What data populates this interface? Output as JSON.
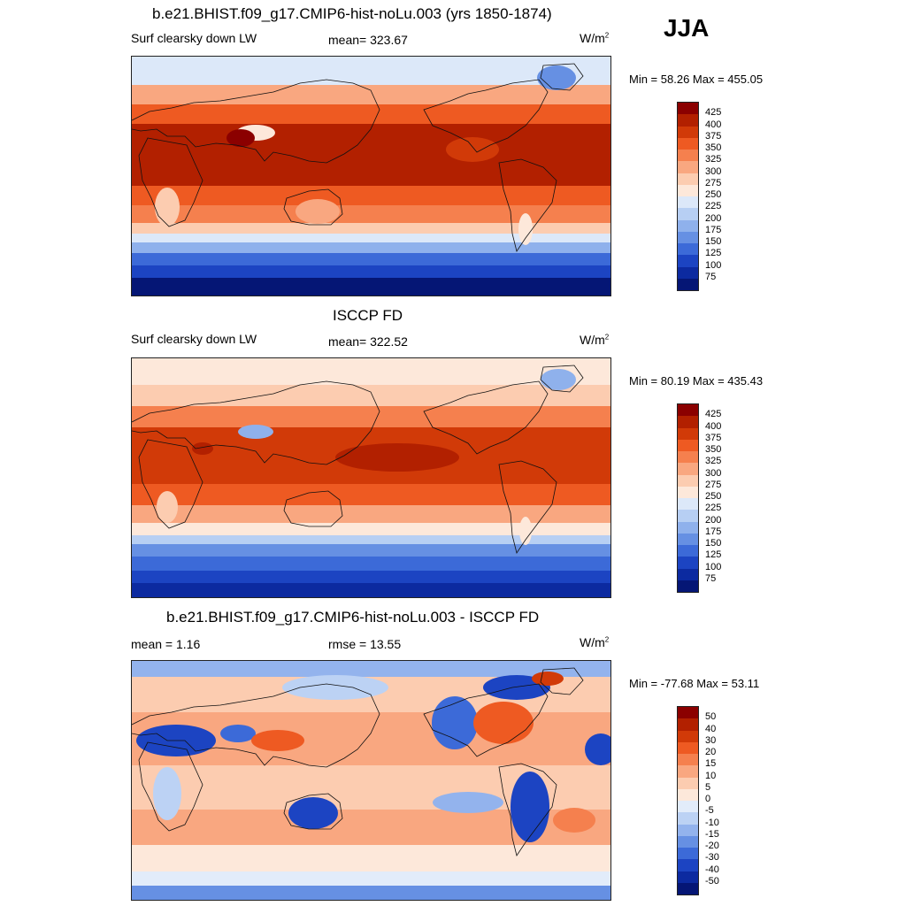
{
  "season": "JJA",
  "units": "W/m",
  "units_sup": "2",
  "panels": [
    {
      "title": "b.e21.BHIST.f09_g17.CMIP6-hist-noLu.003 (yrs 1850-1874)",
      "left_label": "Surf clearsky down LW",
      "center_label": "mean= 323.67",
      "minmax": "Min =  58.26 Max = 455.05",
      "variant": "model"
    },
    {
      "title": "ISCCP FD",
      "left_label": "Surf clearsky down LW",
      "center_label": "mean= 322.52",
      "minmax": "Min =  80.19 Max = 435.43",
      "variant": "obs"
    },
    {
      "title": "b.e21.BHIST.f09_g17.CMIP6-hist-noLu.003 - ISCCP FD",
      "left_label": "mean =   1.16",
      "center_label": "rmse =  13.55",
      "minmax": "Min = -77.68 Max =  53.11",
      "variant": "diff"
    }
  ],
  "colorbar_abs": {
    "labels": [
      "425",
      "400",
      "375",
      "350",
      "325",
      "300",
      "275",
      "250",
      "225",
      "200",
      "175",
      "150",
      "125",
      "100",
      "75"
    ],
    "colors": [
      "#8b0000",
      "#b22000",
      "#d13a08",
      "#ee5a22",
      "#f5804e",
      "#f9a780",
      "#fcccb0",
      "#fde8da",
      "#dce8f9",
      "#b7cff3",
      "#8fb1ec",
      "#6690e3",
      "#3c6ad8",
      "#1c44c2",
      "#0c2aa0",
      "#051675"
    ]
  },
  "colorbar_diff": {
    "labels": [
      "50",
      "40",
      "30",
      "20",
      "15",
      "10",
      "5",
      "0",
      "-5",
      "-10",
      "-15",
      "-20",
      "-30",
      "-40",
      "-50"
    ],
    "colors": [
      "#8b0000",
      "#b22000",
      "#d13a08",
      "#ee5a22",
      "#f5804e",
      "#f9a780",
      "#fcccb0",
      "#fde8da",
      "#e2ecfa",
      "#bcd2f4",
      "#93b3ed",
      "#6690e3",
      "#3c6ad8",
      "#1c44c2",
      "#0c2aa0",
      "#051675"
    ]
  }
}
